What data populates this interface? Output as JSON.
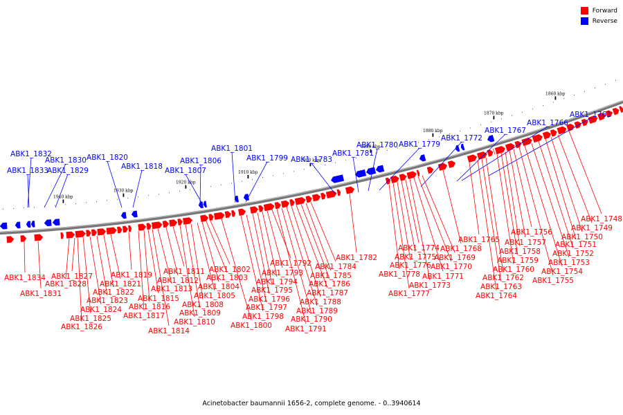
{
  "legend": {
    "forward_label": "Forward",
    "reverse_label": "Reverse",
    "forward_color": "#ff0000",
    "reverse_color": "#0000ff"
  },
  "caption": "Acinetobacter baumannii 1656-2, complete genome. - 0..3940614",
  "scale_ticks": [
    "1940 kbp",
    "1930 kbp",
    "1920 kbp",
    "1910 kbp",
    "1900 kbp",
    "1890 kbp",
    "1880 kbp",
    "1870 kbp",
    "1860 kbp"
  ],
  "reverse_genes": [
    "ABK1_1832",
    "ABK1_1833",
    "ABK1_1830",
    "ABK1_1829",
    "ABK1_1820",
    "ABK1_1818",
    "ABK1_1806",
    "ABK1_1807",
    "ABK1_1801",
    "ABK1_1799",
    "ABK1_1783",
    "ABK1_1781",
    "ABK1_1780",
    "ABK1_1779",
    "ABK1_1772",
    "ABK1_1767",
    "ABK1_1766",
    "ABK1_1761"
  ],
  "forward_genes": [
    "ABK1_1834",
    "ABK1_1831",
    "ABK1_1828",
    "ABK1_1827",
    "ABK1_1826",
    "ABK1_1825",
    "ABK1_1824",
    "ABK1_1823",
    "ABK1_1822",
    "ABK1_1821",
    "ABK1_1819",
    "ABK1_1817",
    "ABK1_1816",
    "ABK1_1815",
    "ABK1_1814",
    "ABK1_1813",
    "ABK1_1812",
    "ABK1_1811",
    "ABK1_1810",
    "ABK1_1809",
    "ABK1_1808",
    "ABK1_1805",
    "ABK1_1804",
    "ABK1_1803",
    "ABK1_1802",
    "ABK1_1800",
    "ABK1_1798",
    "ABK1_1797",
    "ABK1_1796",
    "ABK1_1795",
    "ABK1_1794",
    "ABK1_1793",
    "ABK1_1792",
    "ABK1_1791",
    "ABK1_1790",
    "ABK1_1789",
    "ABK1_1788",
    "ABK1_1787",
    "ABK1_1786",
    "ABK1_1785",
    "ABK1_1784",
    "ABK1_1782",
    "ABK1_1778",
    "ABK1_1777",
    "ABK1_1776",
    "ABK1_1775",
    "ABK1_1774",
    "ABK1_1773",
    "ABK1_1771",
    "ABK1_1770",
    "ABK1_1769",
    "ABK1_1768",
    "ABK1_1765",
    "ABK1_1764",
    "ABK1_1763",
    "ABK1_1762",
    "ABK1_1760",
    "ABK1_1759",
    "ABK1_1758",
    "ABK1_1757",
    "ABK1_1756",
    "ABK1_1755",
    "ABK1_1754",
    "ABK1_1753",
    "ABK1_1752",
    "ABK1_1751",
    "ABK1_1750",
    "ABK1_1749",
    "ABK1_1748"
  ]
}
